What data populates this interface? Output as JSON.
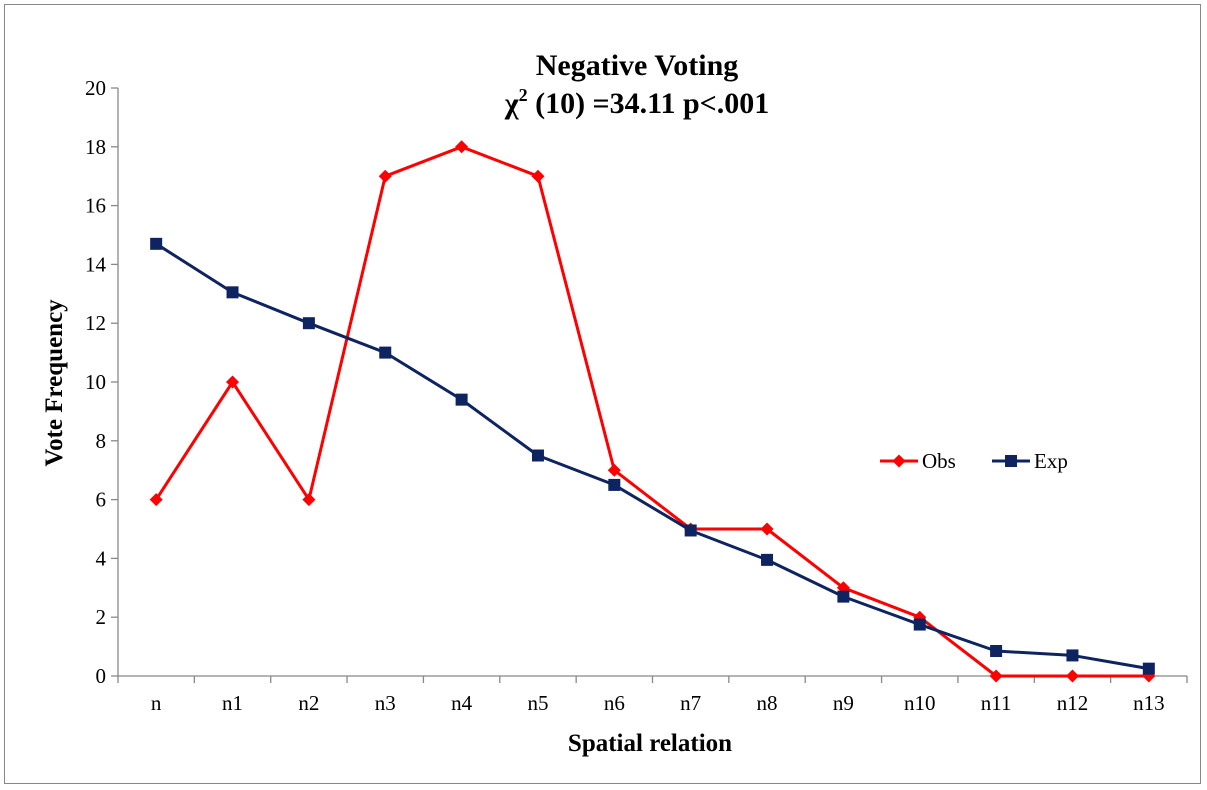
{
  "chart_data": {
    "type": "line",
    "title": "Negative Voting",
    "subtitle": {
      "prefix": "χ",
      "superscript": "2",
      "suffix": " (10) =34.11 p<.001"
    },
    "xlabel": "Spatial relation",
    "ylabel": "Vote Frequency",
    "categories": [
      "n",
      "n1",
      "n2",
      "n3",
      "n4",
      "n5",
      "n6",
      "n7",
      "n8",
      "n9",
      "n10",
      "n11",
      "n12",
      "n13"
    ],
    "ylim": [
      0,
      20
    ],
    "yticks": [
      "0",
      "2",
      "4",
      "6",
      "8",
      "10",
      "12",
      "14",
      "16",
      "18",
      "20"
    ],
    "grid": false,
    "legend": "right",
    "series": [
      {
        "name": "Obs",
        "color": "#ff0000",
        "marker": "diamond",
        "values": [
          6,
          10,
          6,
          17,
          18,
          17,
          7,
          5,
          5,
          3,
          2,
          0,
          0,
          0
        ]
      },
      {
        "name": "Exp",
        "color": "#0d2461",
        "marker": "square",
        "values": [
          14.7,
          13.05,
          12,
          11,
          9.4,
          7.5,
          6.5,
          4.95,
          3.95,
          2.7,
          1.75,
          0.85,
          0.7,
          0.25
        ]
      }
    ]
  }
}
